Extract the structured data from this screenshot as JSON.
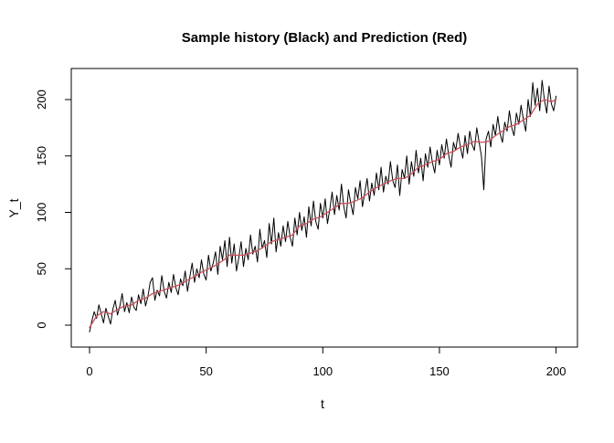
{
  "window": {
    "background": "#ffffff"
  },
  "chart_data": {
    "type": "line",
    "title": "Sample history (Black) and Prediction (Red)",
    "xlabel": "t",
    "ylabel": "Y_t",
    "x_ticks": [
      0,
      50,
      100,
      150,
      200
    ],
    "y_ticks": [
      0,
      50,
      100,
      150,
      200
    ],
    "xlim": [
      -8,
      209
    ],
    "ylim": [
      -20,
      227
    ],
    "grid": false,
    "legend_position": "none",
    "frame_color": "#000000",
    "series": [
      {
        "name": "Sample history",
        "role": "observed",
        "color": "#000000",
        "line_width": 1,
        "t_start": 0,
        "t_step": 1,
        "values": [
          -6,
          4,
          12,
          6,
          18,
          10,
          2,
          15,
          8,
          1,
          14,
          22,
          9,
          17,
          28,
          12,
          20,
          11,
          25,
          16,
          13,
          27,
          19,
          32,
          17,
          25,
          38,
          42,
          22,
          31,
          26,
          44,
          30,
          24,
          38,
          29,
          45,
          33,
          27,
          41,
          35,
          48,
          30,
          43,
          55,
          38,
          50,
          42,
          58,
          45,
          40,
          62,
          48,
          55,
          65,
          45,
          70,
          58,
          75,
          52,
          78,
          55,
          72,
          48,
          60,
          74,
          52,
          68,
          58,
          80,
          63,
          70,
          56,
          85,
          68,
          75,
          60,
          90,
          72,
          95,
          65,
          82,
          70,
          88,
          74,
          92,
          78,
          70,
          95,
          80,
          100,
          84,
          96,
          78,
          105,
          88,
          110,
          92,
          85,
          108,
          95,
          112,
          90,
          103,
          118,
          98,
          115,
          102,
          125,
          105,
          95,
          120,
          108,
          98,
          122,
          112,
          128,
          105,
          118,
          130,
          110,
          126,
          115,
          135,
          120,
          140,
          118,
          132,
          125,
          145,
          128,
          122,
          142,
          115,
          138,
          130,
          150,
          125,
          145,
          132,
          155,
          135,
          148,
          128,
          152,
          140,
          158,
          144,
          135,
          155,
          142,
          160,
          148,
          165,
          150,
          140,
          162,
          155,
          170,
          158,
          148,
          168,
          152,
          172,
          160,
          155,
          175,
          162,
          150,
          120,
          165,
          172,
          158,
          178,
          168,
          185,
          170,
          162,
          180,
          172,
          190,
          175,
          168,
          188,
          178,
          195,
          182,
          172,
          200,
          185,
          215,
          195,
          210,
          190,
          217,
          200,
          188,
          212,
          196,
          190,
          203
        ]
      },
      {
        "name": "Prediction",
        "role": "fitted",
        "color": "#cb4f5c",
        "line_width": 1.3,
        "t": [
          0,
          3,
          6,
          9,
          12,
          15,
          18,
          21,
          24,
          27,
          30,
          33,
          36,
          39,
          42,
          45,
          48,
          51,
          54,
          57,
          60,
          63,
          66,
          69,
          72,
          75,
          78,
          81,
          84,
          87,
          90,
          93,
          96,
          99,
          102,
          105,
          108,
          111,
          114,
          117,
          120,
          123,
          126,
          129,
          132,
          135,
          138,
          141,
          144,
          147,
          150,
          153,
          156,
          159,
          162,
          165,
          168,
          171,
          174,
          177,
          180,
          183,
          186,
          189,
          192,
          195,
          198,
          200
        ],
        "values": [
          -2,
          8,
          12,
          10,
          14,
          17,
          18,
          22,
          24,
          28,
          30,
          32,
          34,
          36,
          40,
          43,
          47,
          50,
          53,
          57,
          62,
          62,
          62,
          64,
          66,
          70,
          74,
          76,
          78,
          80,
          88,
          90,
          94,
          96,
          100,
          104,
          108,
          108,
          110,
          113,
          118,
          122,
          125,
          128,
          130,
          130,
          134,
          140,
          142,
          145,
          147,
          152,
          154,
          158,
          160,
          163,
          162,
          163,
          168,
          172,
          176,
          178,
          182,
          186,
          196,
          200,
          198,
          200
        ]
      }
    ]
  }
}
